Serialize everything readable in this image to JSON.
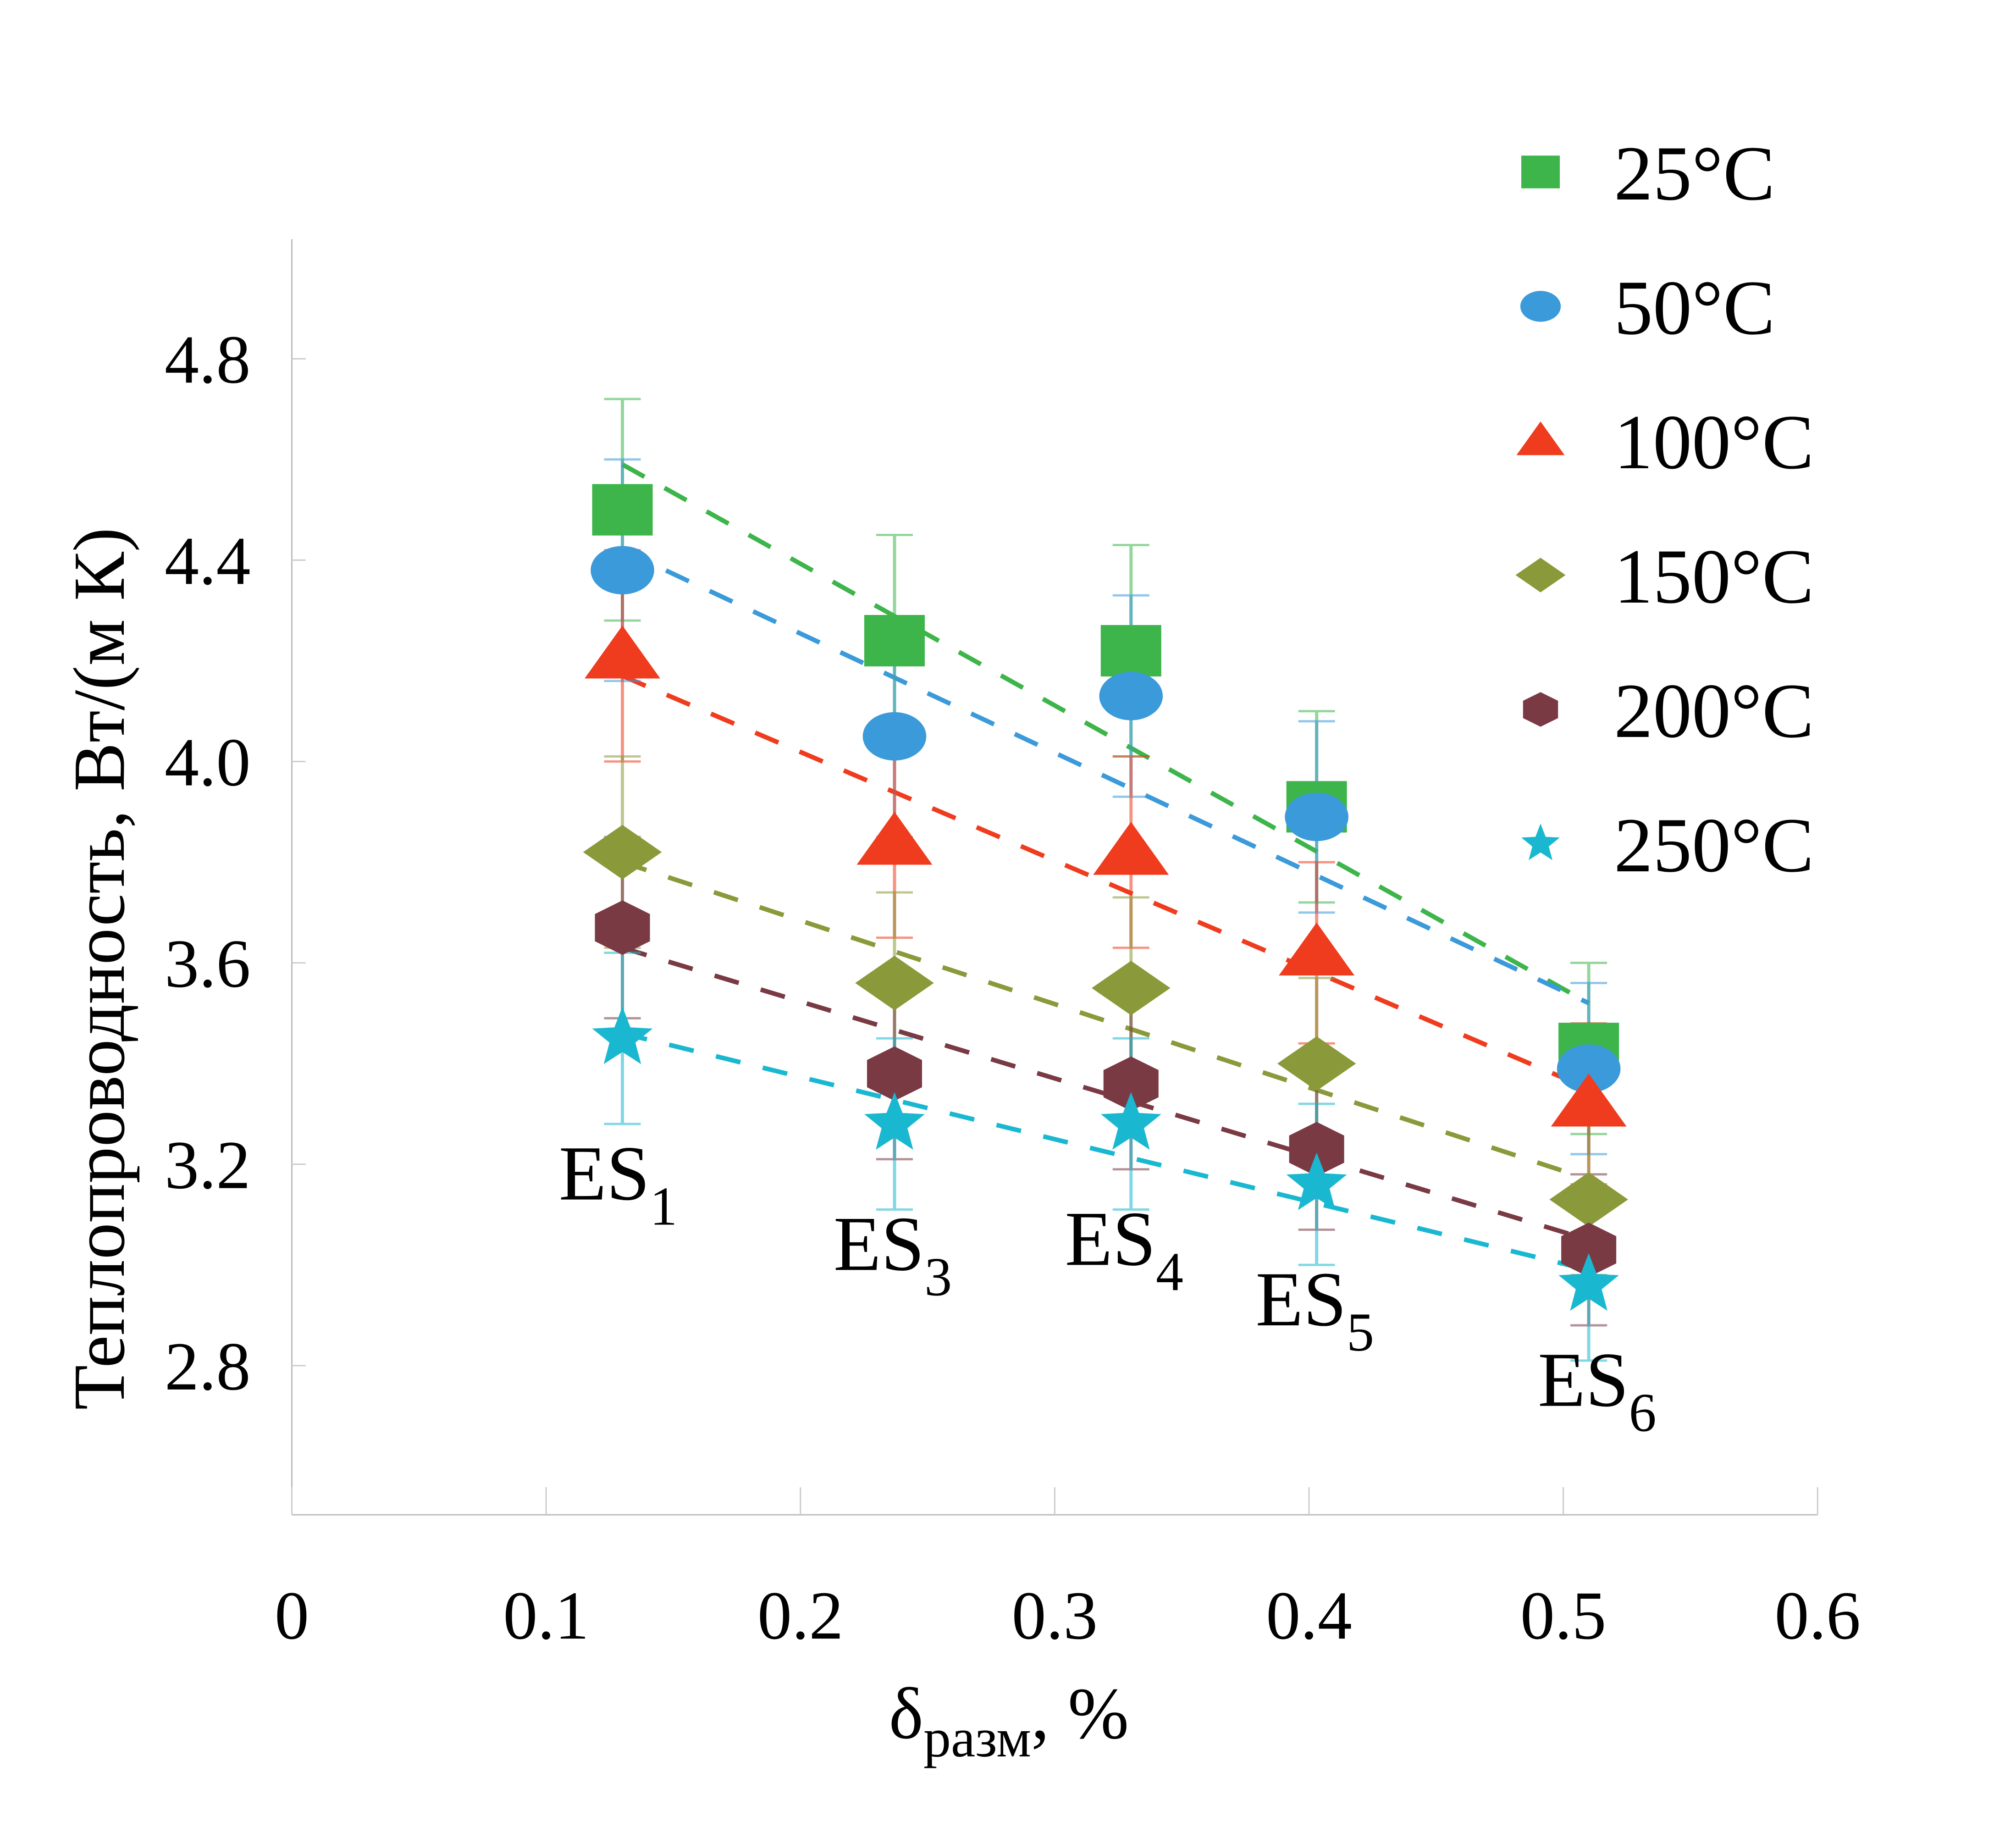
{
  "chart_data": {
    "type": "scatter",
    "title": "",
    "xlabel": "δ",
    "xlabel_sub": "разм",
    "xlabel_suffix": ", %",
    "ylabel": "Теплопроводность, Вт/(м К)",
    "xlim": [
      0,
      0.6
    ],
    "ylim": [
      2.5,
      5.05
    ],
    "x_ticks": [
      0,
      0.1,
      0.2,
      0.3,
      0.4,
      0.5,
      0.6
    ],
    "x_tick_labels": [
      "0",
      "0.1",
      "0.2",
      "0.3",
      "0.4",
      "0.5",
      "0.6"
    ],
    "y_ticks": [
      2.8,
      3.2,
      3.6,
      4.0,
      4.4,
      4.8
    ],
    "y_tick_labels": [
      "2.8",
      "3.2",
      "3.6",
      "4.0",
      "4.4",
      "4.8"
    ],
    "grid": false,
    "legend_position": "top-right",
    "x": [
      0.13,
      0.237,
      0.33,
      0.403,
      0.51
    ],
    "series": [
      {
        "name": "25°C",
        "marker": "square",
        "color": "#3db54a",
        "values": [
          4.5,
          4.24,
          4.22,
          3.91,
          3.43
        ],
        "error": [
          0.22,
          0.21,
          0.21,
          0.19,
          0.17
        ],
        "trend": [
          4.59,
          3.52
        ]
      },
      {
        "name": "50°C",
        "marker": "circle",
        "color": "#3b9ad9",
        "values": [
          4.38,
          4.05,
          4.13,
          3.89,
          3.39
        ],
        "error": [
          0.22,
          0.2,
          0.2,
          0.19,
          0.17
        ],
        "trend": [
          4.42,
          3.52
        ]
      },
      {
        "name": "100°C",
        "marker": "triangle",
        "color": "#f03c1e",
        "values": [
          4.21,
          3.84,
          3.82,
          3.62,
          3.32
        ],
        "error": [
          0.21,
          0.19,
          0.19,
          0.18,
          0.16
        ],
        "trend": [
          4.17,
          3.35
        ]
      },
      {
        "name": "150°C",
        "marker": "diamond",
        "color": "#8a9a3a",
        "values": [
          3.82,
          3.56,
          3.55,
          3.4,
          3.13
        ],
        "error": [
          0.19,
          0.18,
          0.18,
          0.17,
          0.15
        ],
        "trend": [
          3.8,
          3.17
        ]
      },
      {
        "name": "200°C",
        "marker": "hexagon",
        "color": "#7a3a44",
        "values": [
          3.67,
          3.38,
          3.36,
          3.23,
          3.03
        ],
        "error": [
          0.18,
          0.17,
          0.17,
          0.16,
          0.15
        ],
        "trend": [
          3.63,
          3.05
        ]
      },
      {
        "name": "250°C",
        "marker": "star",
        "color": "#1ab8d0",
        "values": [
          3.45,
          3.28,
          3.28,
          3.16,
          2.96
        ],
        "error": [
          0.17,
          0.17,
          0.17,
          0.16,
          0.15
        ],
        "trend": [
          3.46,
          2.99
        ]
      }
    ],
    "trend_x": [
      0.13,
      0.51
    ],
    "annotations": [
      {
        "text": "ES",
        "sub": "1",
        "x": 0.105,
        "y": 3.13
      },
      {
        "text": "ES",
        "sub": "3",
        "x": 0.213,
        "y": 2.99
      },
      {
        "text": "ES",
        "sub": "4",
        "x": 0.304,
        "y": 3.0
      },
      {
        "text": "ES",
        "sub": "5",
        "x": 0.379,
        "y": 2.88
      },
      {
        "text": "ES",
        "sub": "6",
        "x": 0.49,
        "y": 2.72
      }
    ]
  }
}
